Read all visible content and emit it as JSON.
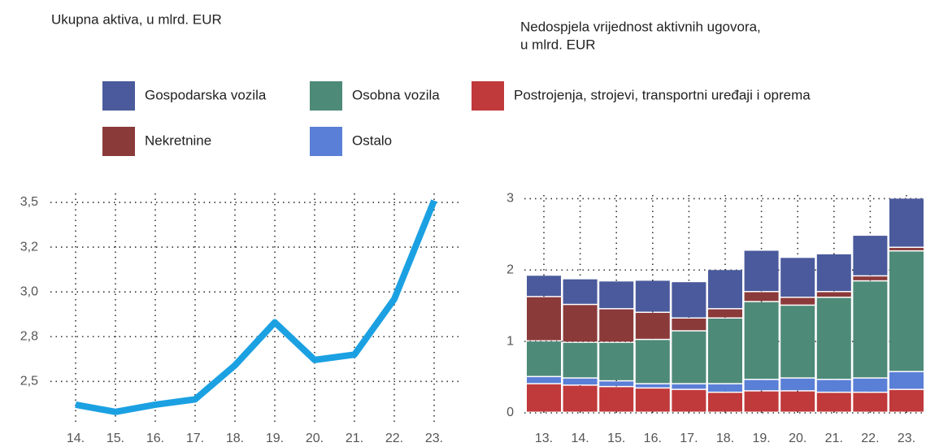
{
  "chart_data": [
    {
      "type": "line",
      "title": "Ukupna aktiva, u mlrd. EUR",
      "categories": [
        "14.",
        "15.",
        "16.",
        "17.",
        "18.",
        "19.",
        "20.",
        "21.",
        "22.",
        "23."
      ],
      "series": [
        {
          "name": "Ukupna aktiva",
          "color": "#1ba1e2",
          "values": [
            2.37,
            2.33,
            2.37,
            2.4,
            2.59,
            2.83,
            2.62,
            2.65,
            2.96,
            3.51
          ]
        }
      ],
      "ylim": [
        2.27,
        3.55
      ],
      "yticks": [
        {
          "value": 2.5,
          "label": "2,5"
        },
        {
          "value": 2.75,
          "label": "2,8"
        },
        {
          "value": 3.0,
          "label": "3,0"
        },
        {
          "value": 3.25,
          "label": "3,2"
        },
        {
          "value": 3.5,
          "label": "3,5"
        }
      ],
      "grid": true
    },
    {
      "type": "stacked_bar",
      "title": [
        "Nedospjela vrijednost aktivnih ugovora,",
        "u mlrd. EUR"
      ],
      "categories": [
        "13.",
        "14.",
        "15.",
        "16.",
        "17.",
        "18.",
        "19.",
        "20.",
        "21.",
        "22.",
        "23."
      ],
      "series": [
        {
          "name": "Postrojenja, strojevi, transportni uređaji i oprema",
          "color": "#c0393b",
          "values": [
            0.4,
            0.38,
            0.36,
            0.34,
            0.32,
            0.28,
            0.3,
            0.3,
            0.28,
            0.28,
            0.32
          ]
        },
        {
          "name": "Ostalo",
          "color": "#5a7fd6",
          "values": [
            0.1,
            0.1,
            0.08,
            0.06,
            0.08,
            0.12,
            0.16,
            0.18,
            0.18,
            0.2,
            0.25
          ]
        },
        {
          "name": "Osobna vozila",
          "color": "#4e8a78",
          "values": [
            0.5,
            0.5,
            0.54,
            0.62,
            0.74,
            0.92,
            1.09,
            1.02,
            1.15,
            1.36,
            1.69
          ]
        },
        {
          "name": "Nekretnine",
          "color": "#8b3a3a",
          "values": [
            0.62,
            0.53,
            0.47,
            0.38,
            0.18,
            0.13,
            0.14,
            0.11,
            0.08,
            0.07,
            0.05
          ]
        },
        {
          "name": "Gospodarska vozila",
          "color": "#4a5a9c",
          "values": [
            0.3,
            0.36,
            0.39,
            0.45,
            0.51,
            0.55,
            0.58,
            0.56,
            0.53,
            0.57,
            0.69
          ]
        }
      ],
      "ylim": [
        0,
        3.05
      ],
      "yticks": [
        0,
        1,
        2,
        3
      ],
      "grid": true
    }
  ]
}
